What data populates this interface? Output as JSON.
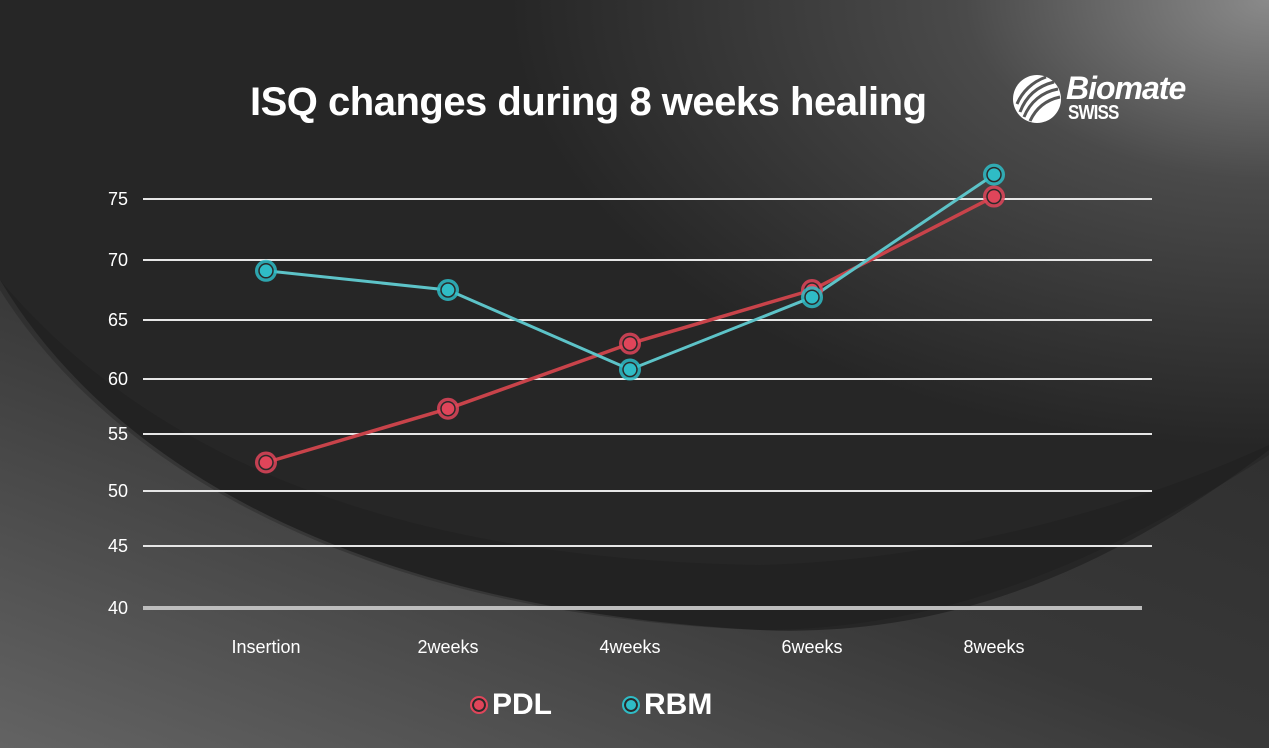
{
  "brand": {
    "name": "Biomate",
    "sub": "SWISS"
  },
  "colors": {
    "pdl": "#e0455a",
    "pdl_line": "#c8434a",
    "rbm": "#2fbcc6",
    "rbm_line": "#5dc3c8",
    "grid": "#e6e6e6",
    "text": "#ffffff"
  },
  "chart_data": {
    "type": "line",
    "title": "ISQ changes during 8 weeks healing",
    "xlabel": "",
    "ylabel": "",
    "categories": [
      "Insertion",
      "2weeks",
      "4weeks",
      "6weeks",
      "8weeks"
    ],
    "y_ticks": [
      40,
      45,
      50,
      55,
      60,
      65,
      70,
      75
    ],
    "ylim": [
      40,
      77
    ],
    "grid": true,
    "legend_position": "bottom-center",
    "series": [
      {
        "name": "PDL",
        "values": [
          52.5,
          57.3,
          63.0,
          67.5,
          75.2
        ]
      },
      {
        "name": "RBM",
        "values": [
          69.1,
          67.5,
          60.8,
          66.9,
          77.0
        ]
      }
    ]
  }
}
